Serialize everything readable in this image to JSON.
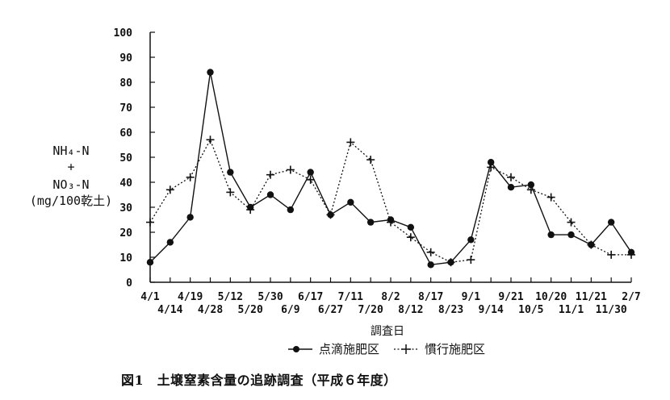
{
  "chart_data": {
    "type": "line",
    "ylabel_lines": [
      "NH₄-N",
      "+",
      "NO₃-N",
      "(mg/100乾土)"
    ],
    "xlabel": "調査日",
    "caption": "図1　土壌窒素含量の追跡調査（平成６年度）",
    "ylim": [
      0,
      100
    ],
    "yticks": [
      0,
      10,
      20,
      30,
      40,
      50,
      60,
      70,
      80,
      90,
      100
    ],
    "grid": false,
    "legend_position": "bottom",
    "x": [
      "4/1",
      "4/14",
      "4/19",
      "4/28",
      "5/12",
      "5/20",
      "5/30",
      "6/9",
      "6/17",
      "6/27",
      "7/11",
      "7/20",
      "8/2",
      "8/12",
      "8/17",
      "8/23",
      "9/1",
      "9/14",
      "9/21",
      "10/5",
      "10/20",
      "11/1",
      "11/21",
      "11/30",
      "2/7"
    ],
    "x_label_row": [
      0,
      1,
      0,
      1,
      0,
      1,
      0,
      1,
      0,
      1,
      0,
      1,
      0,
      1,
      0,
      1,
      0,
      1,
      0,
      1,
      0,
      1,
      0,
      1,
      0
    ],
    "series": [
      {
        "name": "点滴施肥区",
        "marker": "circle",
        "line_style": "solid",
        "values": [
          8,
          16,
          26,
          84,
          44,
          30,
          35,
          29,
          44,
          27,
          32,
          24,
          25,
          22,
          7,
          8,
          17,
          48,
          38,
          39,
          19,
          19,
          15,
          24,
          12
        ]
      },
      {
        "name": "慣行施肥区",
        "marker": "plus",
        "line_style": "dotted",
        "values": [
          24,
          37,
          42,
          57,
          36,
          29,
          43,
          45,
          41,
          27,
          56,
          49,
          24,
          18,
          12,
          8,
          9,
          46,
          42,
          37,
          34,
          24,
          15,
          11,
          11
        ]
      }
    ]
  }
}
